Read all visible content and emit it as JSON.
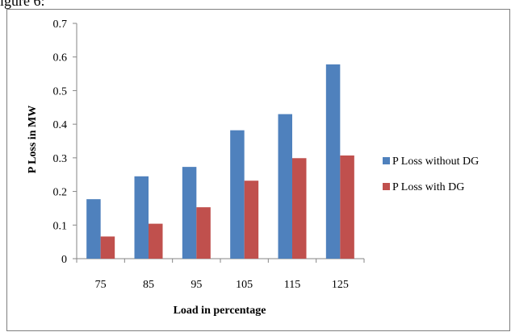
{
  "caption": "igure 6:",
  "chart_data": {
    "type": "bar",
    "title": "",
    "xlabel": "Load in percentage",
    "ylabel": "P Loss in MW",
    "categories": [
      "75",
      "85",
      "95",
      "105",
      "115",
      "125"
    ],
    "series": [
      {
        "name": "P Loss without DG",
        "color": "#4f81bd",
        "values": [
          0.177,
          0.245,
          0.273,
          0.382,
          0.43,
          0.578
        ]
      },
      {
        "name": "P Loss with DG",
        "color": "#c0504d",
        "values": [
          0.066,
          0.104,
          0.153,
          0.232,
          0.299,
          0.307
        ]
      }
    ],
    "ylim": [
      0,
      0.7
    ],
    "yticks": [
      "0",
      "0.1",
      "0.2",
      "0.3",
      "0.4",
      "0.5",
      "0.6",
      "0.7"
    ],
    "grid": false,
    "legend_position": "right"
  }
}
